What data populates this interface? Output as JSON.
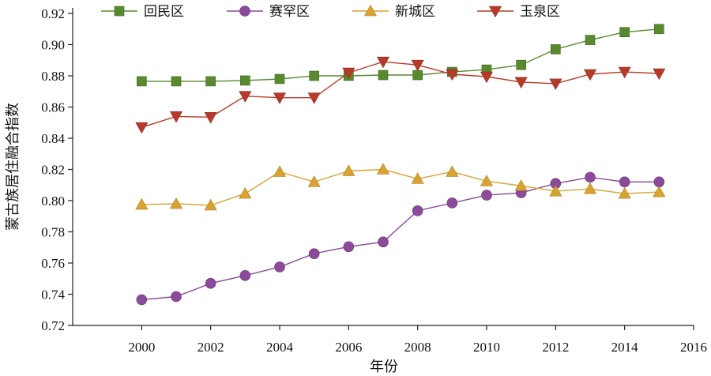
{
  "chart_data": {
    "type": "line",
    "title": "",
    "xlabel": "年份",
    "ylabel": "蒙古族居住融合指数",
    "xlim": [
      1998,
      2016
    ],
    "ylim": [
      0.72,
      0.92
    ],
    "xticks": [
      "2000",
      "2002",
      "2004",
      "2006",
      "2008",
      "2010",
      "2012",
      "2014",
      "2016"
    ],
    "yticks": [
      "0.72",
      "0.74",
      "0.76",
      "0.78",
      "0.80",
      "0.82",
      "0.84",
      "0.86",
      "0.88",
      "0.90",
      "0.92"
    ],
    "legend_position": "top",
    "x": [
      2000,
      2001,
      2002,
      2003,
      2004,
      2005,
      2006,
      2007,
      2008,
      2009,
      2010,
      2011,
      2012,
      2013,
      2014,
      2015
    ],
    "series": [
      {
        "name": "回民区",
        "color": "#5a8a2e",
        "marker": "square",
        "values": [
          0.8765,
          0.8765,
          0.8765,
          0.877,
          0.878,
          0.88,
          0.88,
          0.8805,
          0.8805,
          0.8825,
          0.884,
          0.887,
          0.897,
          0.903,
          0.908,
          0.91
        ]
      },
      {
        "name": "赛罕区",
        "color": "#8b4a9a",
        "marker": "circle",
        "values": [
          0.7365,
          0.7385,
          0.747,
          0.752,
          0.7575,
          0.766,
          0.7705,
          0.7735,
          0.7935,
          0.7985,
          0.8035,
          0.805,
          0.811,
          0.815,
          0.812,
          0.812
        ]
      },
      {
        "name": "新城区",
        "color": "#d9a332",
        "marker": "triangle-up",
        "values": [
          0.7975,
          0.798,
          0.797,
          0.8045,
          0.8185,
          0.812,
          0.819,
          0.82,
          0.814,
          0.8185,
          0.8125,
          0.8095,
          0.806,
          0.8075,
          0.8045,
          0.8055
        ]
      },
      {
        "name": "玉泉区",
        "color": "#b83a2a",
        "marker": "triangle-down",
        "values": [
          0.847,
          0.854,
          0.8535,
          0.867,
          0.866,
          0.866,
          0.882,
          0.889,
          0.887,
          0.881,
          0.8795,
          0.876,
          0.875,
          0.881,
          0.8825,
          0.8815
        ]
      }
    ]
  }
}
